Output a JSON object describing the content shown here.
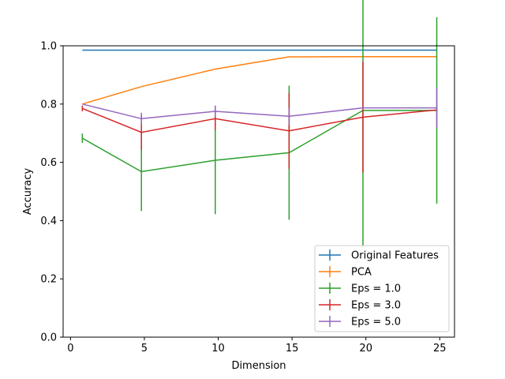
{
  "chart_data": {
    "type": "line",
    "title": "",
    "xlabel": "Dimension",
    "ylabel": "Accuracy",
    "xlim": [
      -0.5,
      26.0
    ],
    "ylim": [
      0.0,
      1.0
    ],
    "xticks": [
      0,
      5,
      10,
      15,
      20,
      25
    ],
    "xtick_labels": [
      "0",
      "5",
      "10",
      "15",
      "20",
      "25"
    ],
    "yticks": [
      0.0,
      0.2,
      0.4,
      0.6,
      0.8,
      1.0
    ],
    "ytick_labels": [
      "0.0",
      "0.2",
      "0.4",
      "0.6",
      "0.8",
      "1.0"
    ],
    "grid": false,
    "legend_position": "lower-right",
    "series": [
      {
        "name": "Original Features",
        "color": "#1f77b4",
        "x": [
          0.8,
          4.8,
          9.8,
          14.8,
          19.8,
          24.8
        ],
        "y": [
          0.985,
          0.985,
          0.985,
          0.985,
          0.985,
          0.985
        ],
        "err": [
          0,
          0,
          0,
          0,
          0,
          0
        ]
      },
      {
        "name": "PCA",
        "color": "#ff7f0e",
        "x": [
          0.8,
          4.8,
          9.8,
          14.8,
          19.8,
          24.8
        ],
        "y": [
          0.8,
          0.86,
          0.92,
          0.962,
          0.963,
          0.963
        ],
        "err": [
          0,
          0,
          0,
          0,
          0,
          0
        ]
      },
      {
        "name": "Eps = 1.0",
        "color": "#2ca02c",
        "x": [
          0.8,
          4.8,
          9.8,
          14.8,
          19.8,
          24.8
        ],
        "y": [
          0.683,
          0.568,
          0.607,
          0.633,
          0.778,
          0.778
        ],
        "err": [
          0.016,
          0.135,
          0.185,
          0.23,
          0.47,
          0.32
        ]
      },
      {
        "name": "Eps = 3.0",
        "color": "#d62728",
        "x": [
          0.8,
          4.8,
          9.8,
          14.8,
          19.8,
          24.8
        ],
        "y": [
          0.785,
          0.703,
          0.75,
          0.708,
          0.755,
          0.78
        ],
        "err": [
          0.01,
          0.06,
          0.04,
          0.13,
          0.19,
          0.01
        ]
      },
      {
        "name": "Eps = 5.0",
        "color": "#9467bd",
        "x": [
          0.8,
          4.8,
          9.8,
          14.8,
          19.8,
          24.8
        ],
        "y": [
          0.8,
          0.75,
          0.775,
          0.758,
          0.787,
          0.787
        ],
        "err": [
          0.0,
          0.02,
          0.02,
          0.03,
          0.005,
          0.07
        ]
      }
    ]
  }
}
